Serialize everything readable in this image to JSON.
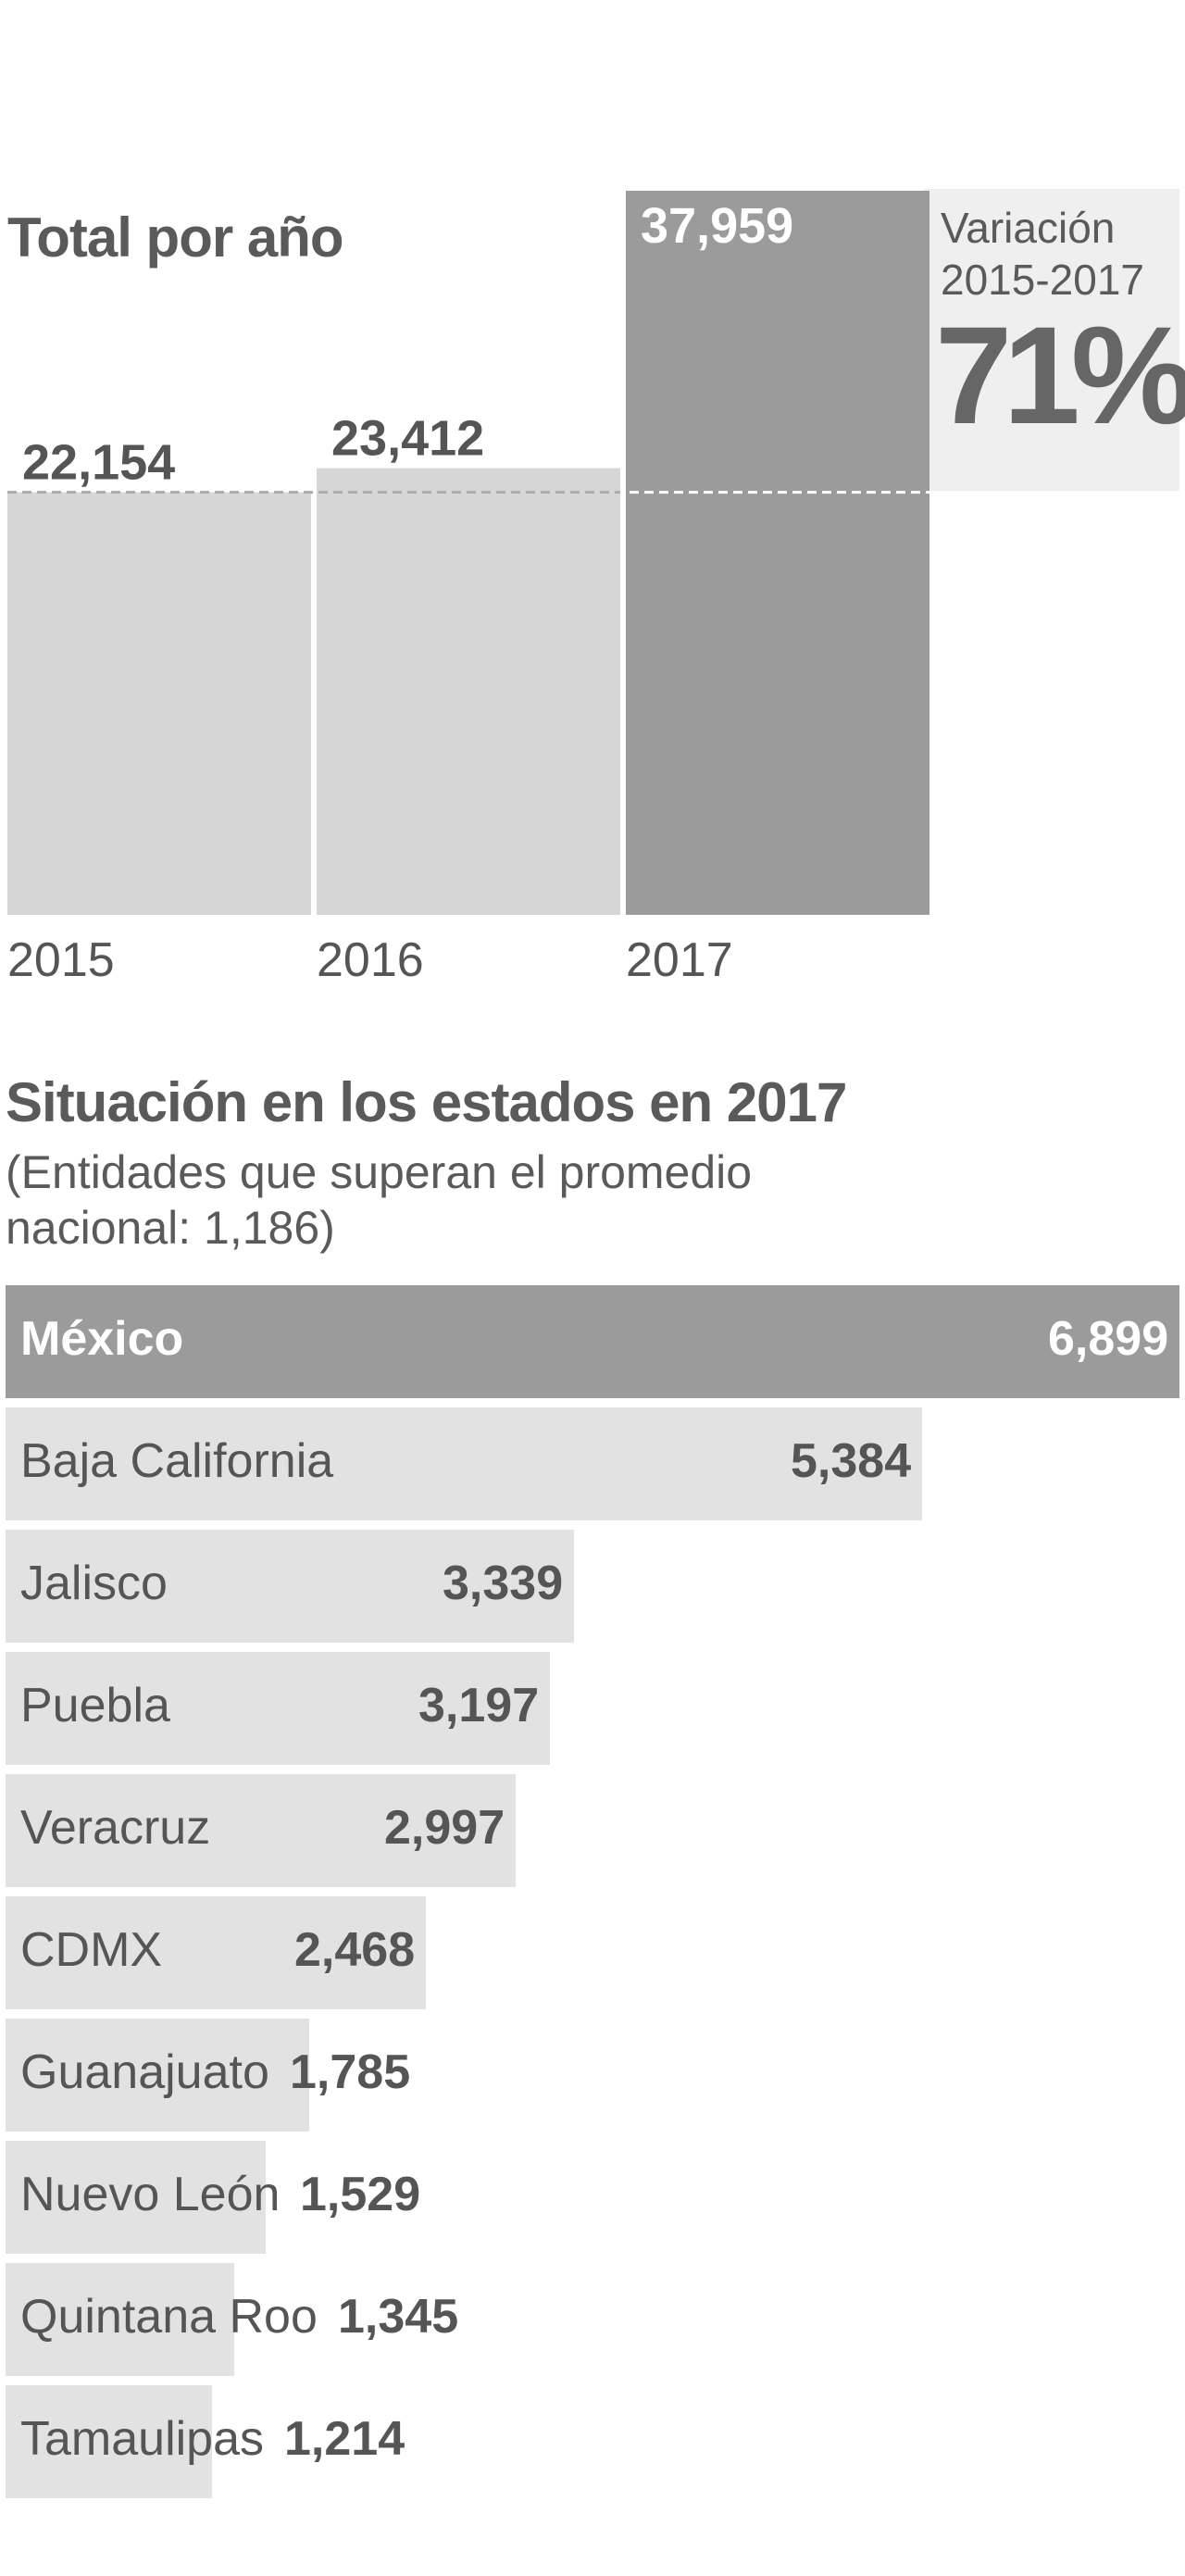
{
  "chart_data": [
    {
      "type": "bar",
      "title": "Total por año",
      "categories": [
        "2015",
        "2016",
        "2017"
      ],
      "values": [
        22154,
        23412,
        37959
      ],
      "value_labels": [
        "22,154",
        "23,412",
        "37,959"
      ],
      "ylim": [
        0,
        37959
      ],
      "colors": [
        "#d6d6d6",
        "#d6d6d6",
        "#9b9b9b"
      ],
      "annotation": {
        "label": "Variación 2015-2017",
        "value": "71%"
      }
    },
    {
      "type": "bar",
      "orientation": "horizontal",
      "title": "Situación en los estados en 2017",
      "subtitle": "(Entidades que  superan el promedio nacional: 1,186)",
      "categories": [
        "México",
        "Baja California",
        "Jalisco",
        "Puebla",
        "Veracruz",
        "CDMX",
        "Guanajuato",
        "Nuevo León",
        "Quintana Roo",
        "Tamaulipas"
      ],
      "values": [
        6899,
        5384,
        3339,
        3197,
        2997,
        2468,
        1785,
        1529,
        1345,
        1214
      ],
      "value_labels": [
        "6,899",
        "5,384",
        "3,339",
        "3,197",
        "2,997",
        "2,468",
        "1,785",
        "1,529",
        "1,345",
        "1,214"
      ],
      "xlim": [
        0,
        6899
      ],
      "colors": {
        "highlight": "#9b9b9b",
        "default": "#e2e2e2"
      }
    }
  ]
}
